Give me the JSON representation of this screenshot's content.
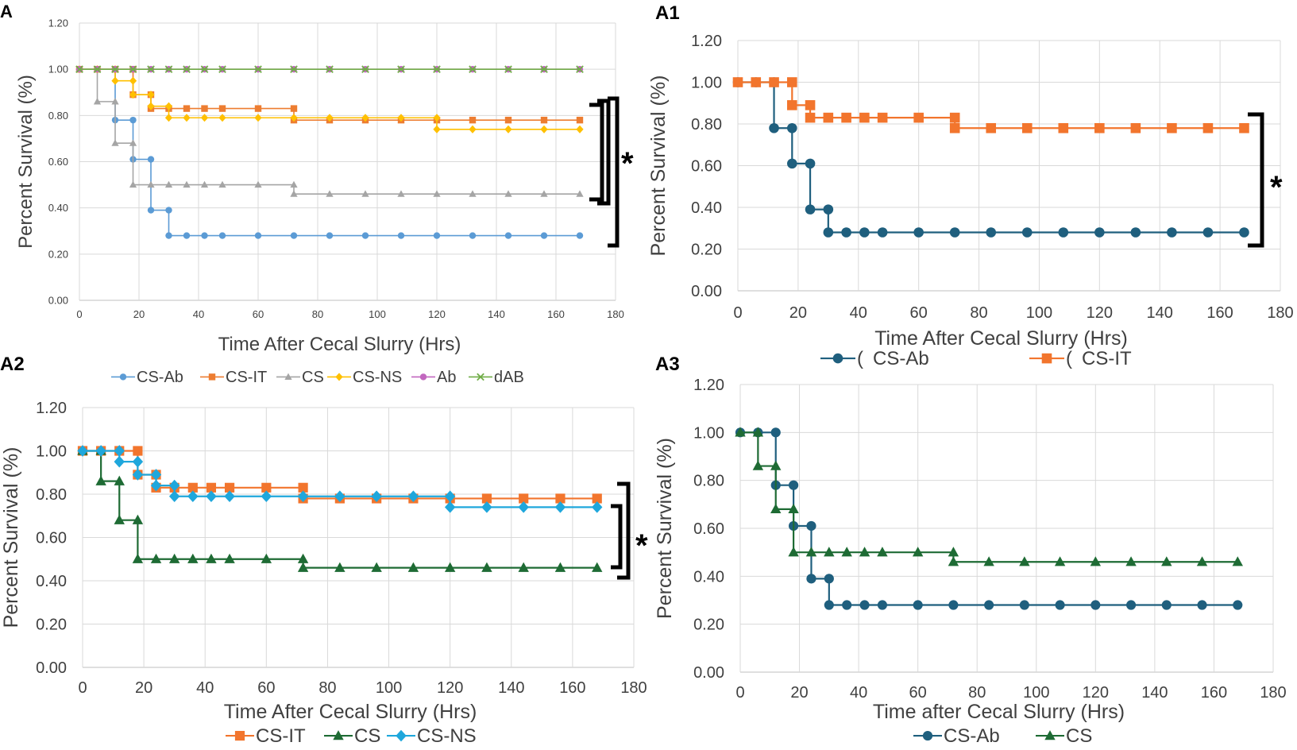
{
  "colors": {
    "cs_ab": "#5B9BD5",
    "cs_it": "#ED7D31",
    "cs": "#A5A5A5",
    "cs_ns": "#FFC000",
    "ab": "#C267BF",
    "dab": "#70AD47",
    "cs_ab_dark": "#1F5F7E",
    "cs_dark": "#1E6B34",
    "cs_ns_bright": "#1FA7DC",
    "cs_it_bright": "#F2752D"
  },
  "chart_data": [
    {
      "id": "A",
      "type": "line",
      "subtype": "step",
      "label": "A",
      "title": "",
      "xlabel": "Time After Cecal Slurry (Hrs)",
      "ylabel": "Percent Survival (%)",
      "xlim": [
        0,
        180
      ],
      "ylim": [
        0,
        1.2
      ],
      "xticks": [
        "0",
        "20",
        "40",
        "60",
        "80",
        "100",
        "120",
        "140",
        "160",
        "180"
      ],
      "yticks": [
        "0.00",
        "0.20",
        "0.40",
        "0.60",
        "0.80",
        "1.00",
        "1.20"
      ],
      "grid": true,
      "legend_position": "bottom",
      "significance_marker": "*",
      "x": [
        0,
        6,
        12,
        18,
        24,
        30,
        36,
        42,
        48,
        60,
        72,
        84,
        96,
        108,
        120,
        132,
        144,
        156,
        168
      ],
      "series": [
        {
          "name": "CS-Ab",
          "color_key": "cs_ab",
          "marker": "circle",
          "values": [
            1.0,
            1.0,
            0.78,
            0.61,
            0.39,
            0.28,
            0.28,
            0.28,
            0.28,
            0.28,
            0.28,
            0.28,
            0.28,
            0.28,
            0.28,
            0.28,
            0.28,
            0.28,
            0.28
          ]
        },
        {
          "name": "CS-IT",
          "color_key": "cs_it",
          "marker": "square",
          "values": [
            1.0,
            1.0,
            1.0,
            0.89,
            0.83,
            0.83,
            0.83,
            0.83,
            0.83,
            0.83,
            0.78,
            0.78,
            0.78,
            0.78,
            0.78,
            0.78,
            0.78,
            0.78,
            0.78
          ]
        },
        {
          "name": "CS",
          "color_key": "cs",
          "marker": "triangle",
          "values": [
            1.0,
            0.86,
            0.68,
            0.5,
            0.5,
            0.5,
            0.5,
            0.5,
            0.5,
            0.5,
            0.46,
            0.46,
            0.46,
            0.46,
            0.46,
            0.46,
            0.46,
            0.46,
            0.46
          ]
        },
        {
          "name": "CS-NS",
          "color_key": "cs_ns",
          "marker": "diamond",
          "values": [
            1.0,
            1.0,
            0.95,
            0.89,
            0.84,
            0.79,
            0.79,
            0.79,
            0.79,
            0.79,
            0.79,
            0.79,
            0.79,
            0.79,
            0.74,
            0.74,
            0.74,
            0.74,
            0.74
          ]
        },
        {
          "name": "Ab",
          "color_key": "ab",
          "marker": "circle",
          "values": [
            1.0,
            1.0,
            1.0,
            1.0,
            1.0,
            1.0,
            1.0,
            1.0,
            1.0,
            1.0,
            1.0,
            1.0,
            1.0,
            1.0,
            1.0,
            1.0,
            1.0,
            1.0,
            1.0
          ]
        },
        {
          "name": "dAB",
          "color_key": "dab",
          "marker": "x",
          "values": [
            1.0,
            1.0,
            1.0,
            1.0,
            1.0,
            1.0,
            1.0,
            1.0,
            1.0,
            1.0,
            1.0,
            1.0,
            1.0,
            1.0,
            1.0,
            1.0,
            1.0,
            1.0,
            1.0
          ]
        }
      ]
    },
    {
      "id": "A1",
      "type": "line",
      "subtype": "step",
      "label": "A1",
      "title": "",
      "xlabel": "Time After Cecal Slurry (Hrs)",
      "ylabel": "Percent Survival (%)",
      "xlim": [
        0,
        180
      ],
      "ylim": [
        0,
        1.2
      ],
      "xticks": [
        "0",
        "20",
        "40",
        "60",
        "80",
        "100",
        "120",
        "140",
        "160",
        "180"
      ],
      "yticks": [
        "0.00",
        "0.20",
        "0.40",
        "0.60",
        "0.80",
        "1.00",
        "1.20"
      ],
      "grid": true,
      "legend_position": "bottom",
      "significance_marker": "*",
      "x": [
        0,
        6,
        12,
        18,
        24,
        30,
        36,
        42,
        48,
        60,
        72,
        84,
        96,
        108,
        120,
        132,
        144,
        156,
        168
      ],
      "series": [
        {
          "name": "CS-Ab",
          "legend_label": "CS-Ab",
          "legend_prefix": "(",
          "color_key": "cs_ab_dark",
          "marker": "circle",
          "values": [
            1.0,
            1.0,
            0.78,
            0.61,
            0.39,
            0.28,
            0.28,
            0.28,
            0.28,
            0.28,
            0.28,
            0.28,
            0.28,
            0.28,
            0.28,
            0.28,
            0.28,
            0.28,
            0.28
          ]
        },
        {
          "name": "CS-IT",
          "legend_label": "CS-IT",
          "legend_prefix": "(",
          "color_key": "cs_it_bright",
          "marker": "square",
          "values": [
            1.0,
            1.0,
            1.0,
            0.89,
            0.83,
            0.83,
            0.83,
            0.83,
            0.83,
            0.83,
            0.78,
            0.78,
            0.78,
            0.78,
            0.78,
            0.78,
            0.78,
            0.78,
            0.78
          ]
        }
      ]
    },
    {
      "id": "A2",
      "type": "line",
      "subtype": "step",
      "label": "A2",
      "title": "",
      "xlabel": "Time After Cecal Slurry (Hrs)",
      "ylabel": "Percent Survival (%)",
      "xlim": [
        0,
        180
      ],
      "ylim": [
        0,
        1.2
      ],
      "xticks": [
        "0",
        "20",
        "40",
        "60",
        "80",
        "100",
        "120",
        "140",
        "160",
        "180"
      ],
      "yticks": [
        "0.00",
        "0.20",
        "0.40",
        "0.60",
        "0.80",
        "1.00",
        "1.20"
      ],
      "grid": true,
      "legend_position": "bottom",
      "significance_marker": "*",
      "x": [
        0,
        6,
        12,
        18,
        24,
        30,
        36,
        42,
        48,
        60,
        72,
        84,
        96,
        108,
        120,
        132,
        144,
        156,
        168
      ],
      "series": [
        {
          "name": "CS-IT",
          "color_key": "cs_it_bright",
          "marker": "square",
          "values": [
            1.0,
            1.0,
            1.0,
            0.89,
            0.83,
            0.83,
            0.83,
            0.83,
            0.83,
            0.83,
            0.78,
            0.78,
            0.78,
            0.78,
            0.78,
            0.78,
            0.78,
            0.78,
            0.78
          ]
        },
        {
          "name": "CS",
          "color_key": "cs_dark",
          "marker": "triangle",
          "values": [
            1.0,
            0.86,
            0.68,
            0.5,
            0.5,
            0.5,
            0.5,
            0.5,
            0.5,
            0.5,
            0.46,
            0.46,
            0.46,
            0.46,
            0.46,
            0.46,
            0.46,
            0.46,
            0.46
          ]
        },
        {
          "name": "CS-NS",
          "color_key": "cs_ns_bright",
          "marker": "diamond",
          "values": [
            1.0,
            1.0,
            0.95,
            0.89,
            0.84,
            0.79,
            0.79,
            0.79,
            0.79,
            0.79,
            0.79,
            0.79,
            0.79,
            0.79,
            0.74,
            0.74,
            0.74,
            0.74,
            0.74
          ]
        }
      ]
    },
    {
      "id": "A3",
      "type": "line",
      "subtype": "step",
      "label": "A3",
      "title": "",
      "xlabel": "Time after Cecal Slurry (Hrs)",
      "ylabel": "Percent Survival (%)",
      "xlim": [
        0,
        180
      ],
      "ylim": [
        0,
        1.2
      ],
      "xticks": [
        "0",
        "20",
        "40",
        "60",
        "80",
        "100",
        "120",
        "140",
        "160",
        "180"
      ],
      "yticks": [
        "0.00",
        "0.20",
        "0.40",
        "0.60",
        "0.80",
        "1.00",
        "1.20"
      ],
      "grid": true,
      "legend_position": "bottom",
      "significance_marker": "",
      "x": [
        0,
        6,
        12,
        18,
        24,
        30,
        36,
        42,
        48,
        60,
        72,
        84,
        96,
        108,
        120,
        132,
        144,
        156,
        168
      ],
      "series": [
        {
          "name": "CS-Ab",
          "color_key": "cs_ab_dark",
          "marker": "circle",
          "values": [
            1.0,
            1.0,
            0.78,
            0.61,
            0.39,
            0.28,
            0.28,
            0.28,
            0.28,
            0.28,
            0.28,
            0.28,
            0.28,
            0.28,
            0.28,
            0.28,
            0.28,
            0.28,
            0.28
          ]
        },
        {
          "name": "CS",
          "color_key": "cs_dark",
          "marker": "triangle",
          "values": [
            1.0,
            0.86,
            0.68,
            0.5,
            0.5,
            0.5,
            0.5,
            0.5,
            0.5,
            0.5,
            0.46,
            0.46,
            0.46,
            0.46,
            0.46,
            0.46,
            0.46,
            0.46,
            0.46
          ]
        }
      ]
    }
  ]
}
